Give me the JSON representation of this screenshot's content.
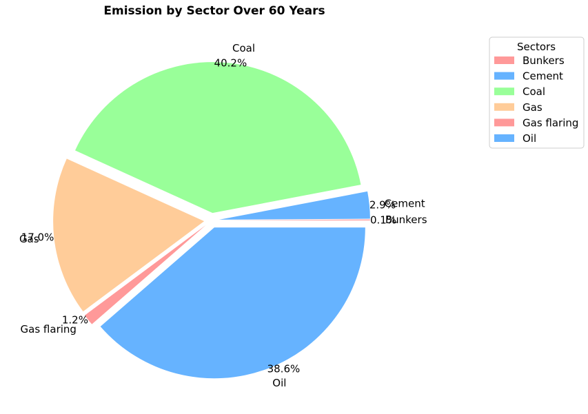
{
  "chart_data": {
    "type": "pie",
    "title": "Emission by Sector Over 60 Years",
    "legend": {
      "title": "Sectors",
      "placement": "top-right"
    },
    "slices": [
      {
        "label": "Bunkers",
        "value": 0.1,
        "pct_label": "0.1%",
        "color": "#ff9999",
        "exploded": true
      },
      {
        "label": "Cement",
        "value": 2.9,
        "pct_label": "2.9%",
        "color": "#66b3ff",
        "exploded": true
      },
      {
        "label": "Coal",
        "value": 40.2,
        "pct_label": "40.2%",
        "color": "#99ff99",
        "exploded": true
      },
      {
        "label": "Gas",
        "value": 17.0,
        "pct_label": "17.0%",
        "color": "#ffcc99",
        "exploded": true
      },
      {
        "label": "Gas flaring",
        "value": 1.2,
        "pct_label": "1.2%",
        "color": "#ff9999",
        "exploded": true
      },
      {
        "label": "Oil",
        "value": 38.6,
        "pct_label": "38.6%",
        "color": "#66b3ff",
        "exploded": true
      }
    ]
  }
}
